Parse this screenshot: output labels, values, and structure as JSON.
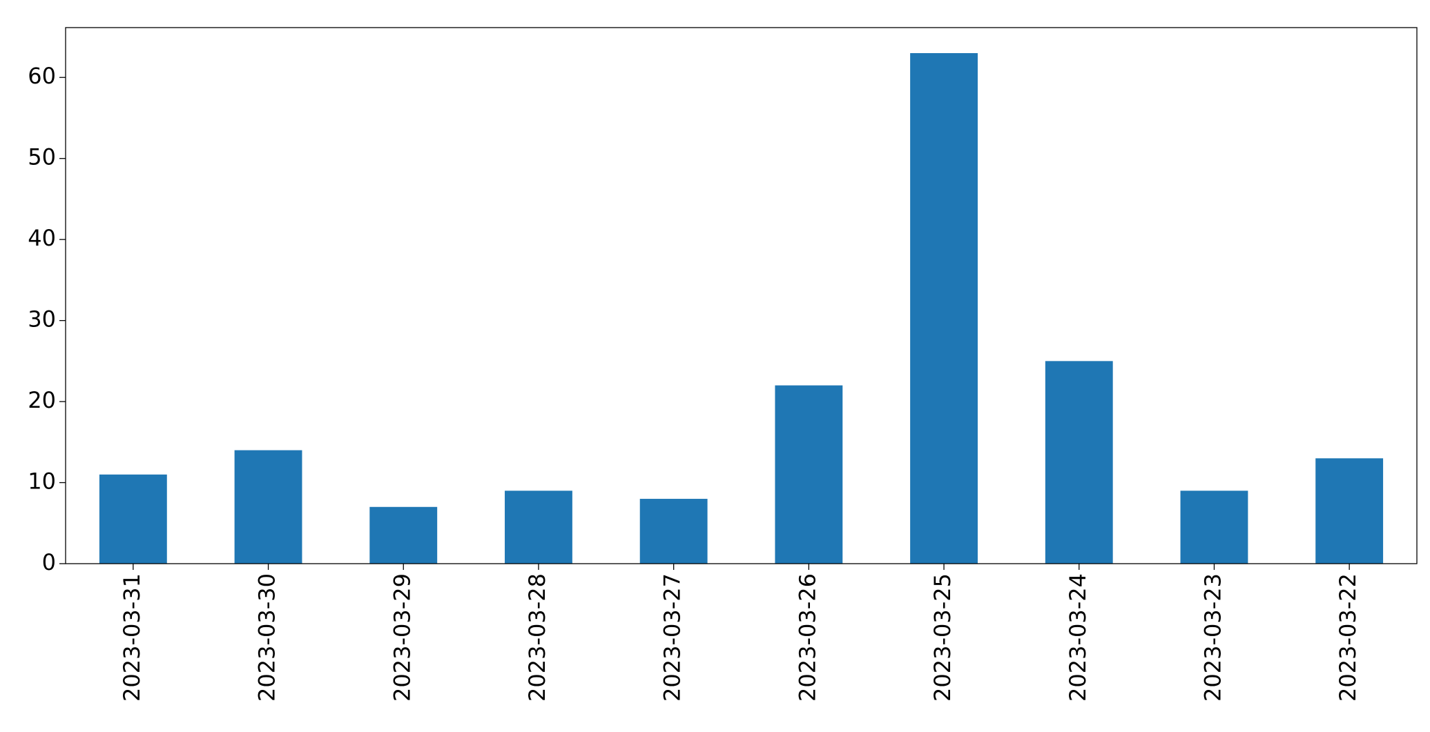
{
  "chart_data": {
    "type": "bar",
    "categories": [
      "2023-03-31",
      "2023-03-30",
      "2023-03-29",
      "2023-03-28",
      "2023-03-27",
      "2023-03-26",
      "2023-03-25",
      "2023-03-24",
      "2023-03-23",
      "2023-03-22"
    ],
    "values": [
      11,
      14,
      7,
      9,
      8,
      22,
      63,
      25,
      9,
      13
    ],
    "color": "#1f77b4",
    "ylim": [
      0,
      66.15
    ],
    "yticks": [
      0,
      10,
      20,
      30,
      40,
      50,
      60
    ],
    "grid": false
  }
}
